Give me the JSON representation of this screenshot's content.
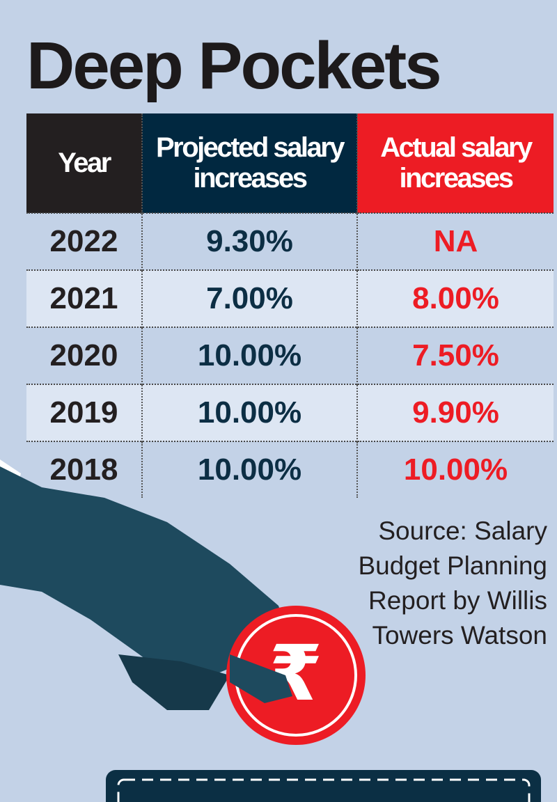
{
  "title": "Deep Pockets",
  "chart_data": {
    "type": "table",
    "title": "Deep Pockets",
    "columns": [
      "Year",
      "Projected salary increases",
      "Actual salary increases"
    ],
    "rows": [
      [
        "2022",
        "9.30%",
        "NA"
      ],
      [
        "2021",
        "7.00%",
        "8.00%"
      ],
      [
        "2020",
        "10.00%",
        "7.50%"
      ],
      [
        "2019",
        "10.00%",
        "9.90%"
      ],
      [
        "2018",
        "10.00%",
        "10.00%"
      ]
    ],
    "colors": {
      "year_header": "#231f20",
      "projected_header": "#012840",
      "actual_header": "#ed1c24"
    }
  },
  "source": {
    "label": "Source:",
    "text": "Salary Budget Planning Report by Willis Towers Watson"
  },
  "coin_symbol": "₹"
}
